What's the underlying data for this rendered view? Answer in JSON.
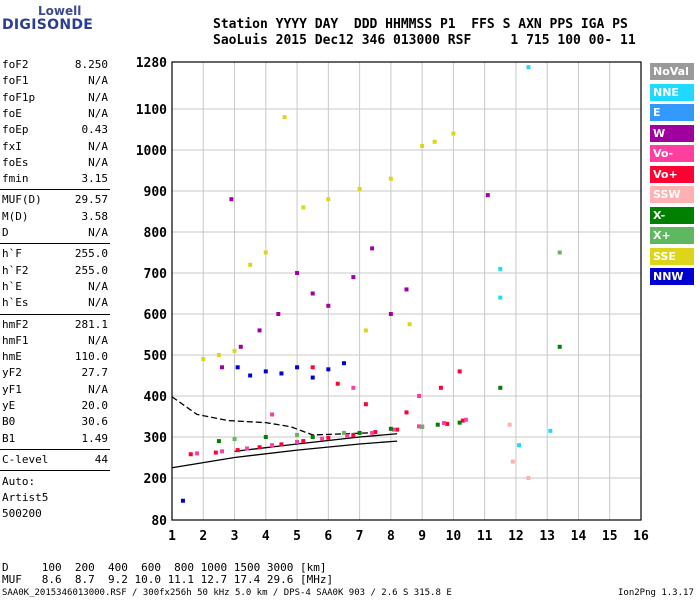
{
  "logo": {
    "line1": "Lowell",
    "line2": "DIGISONDE"
  },
  "header": {
    "row1": "Station YYYY DAY  DDD HHMMSS P1  FFS S AXN PPS IGA PS",
    "row2": "SaoLuis 2015 Dec12 346 013000 RSF     1 715 100 00- 11"
  },
  "params_a": [
    {
      "k": "foF2",
      "v": "8.250"
    },
    {
      "k": "foF1",
      "v": "N/A"
    },
    {
      "k": "foF1p",
      "v": "N/A"
    },
    {
      "k": "foE",
      "v": "N/A"
    },
    {
      "k": "foEp",
      "v": "0.43"
    },
    {
      "k": "fxI",
      "v": "N/A"
    },
    {
      "k": "foEs",
      "v": "N/A"
    },
    {
      "k": "fmin",
      "v": "3.15"
    }
  ],
  "params_b": [
    {
      "k": "MUF(D)",
      "v": "29.57"
    },
    {
      "k": "M(D)",
      "v": "3.58"
    },
    {
      "k": "D",
      "v": "N/A"
    }
  ],
  "params_c": [
    {
      "k": "h`F",
      "v": "255.0"
    },
    {
      "k": "h`F2",
      "v": "255.0"
    },
    {
      "k": "h`E",
      "v": "N/A"
    },
    {
      "k": "h`Es",
      "v": "N/A"
    }
  ],
  "params_d": [
    {
      "k": "hmF2",
      "v": "281.1"
    },
    {
      "k": "hmF1",
      "v": "N/A"
    },
    {
      "k": "hmE",
      "v": "110.0"
    },
    {
      "k": "yF2",
      "v": "27.7"
    },
    {
      "k": "yF1",
      "v": "N/A"
    },
    {
      "k": "yE",
      "v": "20.0"
    },
    {
      "k": "B0",
      "v": "30.6"
    },
    {
      "k": "B1",
      "v": "1.49"
    }
  ],
  "clevel": {
    "k": "C-level",
    "v": "44"
  },
  "auto": [
    "Auto:",
    "Artist5",
    "500200"
  ],
  "legend": [
    {
      "label": "NoVal",
      "color": "#9a9a9a"
    },
    {
      "label": "NNE",
      "color": "#1fd9ff"
    },
    {
      "label": "E",
      "color": "#3399ff"
    },
    {
      "label": "W",
      "color": "#a0009f"
    },
    {
      "label": "Vo-",
      "color": "#ff3fa0"
    },
    {
      "label": "Vo+",
      "color": "#ff0033"
    },
    {
      "label": "SSW",
      "color": "#ffb0b0"
    },
    {
      "label": "X-",
      "color": "#007f00"
    },
    {
      "label": "X+",
      "color": "#5fb75f"
    },
    {
      "label": "SSE",
      "color": "#dcd51a"
    },
    {
      "label": "NNW",
      "color": "#0000d0"
    }
  ],
  "table": {
    "row1": "D     100  200  400  600  800 1000 1500 3000 [km]",
    "row2": "MUF   8.6  8.7  9.2 10.0 11.1 12.7 17.4 29.6 [MHz]"
  },
  "footer": {
    "left": "SAA0K_2015346013000.RSF / 300fx256h 50 kHz 5.0 km / DPS-4 SAA0K 903 / 2.6 S 315.8 E",
    "right": "Ion2Png 1.3.17"
  },
  "chart_data": {
    "type": "scatter",
    "x_ticks": [
      1,
      2,
      3,
      4,
      5,
      6,
      7,
      8,
      9,
      10,
      11,
      12,
      13,
      14,
      15,
      16
    ],
    "y_ticks": [
      80,
      200,
      300,
      400,
      500,
      600,
      700,
      800,
      900,
      1000,
      1100,
      1280
    ],
    "x_range": [
      1,
      16
    ],
    "y_range": [
      80,
      1280
    ],
    "grid": true,
    "series": [
      {
        "name": "Vo+",
        "color": "#ff0033",
        "points": [
          [
            1.6,
            258
          ],
          [
            2.4,
            262
          ],
          [
            3.1,
            268
          ],
          [
            3.8,
            275
          ],
          [
            4.5,
            282
          ],
          [
            5.2,
            290
          ],
          [
            6,
            298
          ],
          [
            6.8,
            305
          ],
          [
            7.5,
            312
          ],
          [
            8.2,
            318
          ],
          [
            9,
            325
          ],
          [
            9.8,
            332
          ],
          [
            10.3,
            340
          ],
          [
            5.5,
            470
          ],
          [
            6.3,
            430
          ],
          [
            7.2,
            380
          ],
          [
            8.5,
            360
          ],
          [
            9.6,
            420
          ],
          [
            10.2,
            460
          ]
        ]
      },
      {
        "name": "Vo-",
        "color": "#ff3fa0",
        "points": [
          [
            1.8,
            260
          ],
          [
            2.6,
            265
          ],
          [
            3.4,
            272
          ],
          [
            4.2,
            280
          ],
          [
            5,
            288
          ],
          [
            5.8,
            296
          ],
          [
            6.6,
            303
          ],
          [
            7.4,
            310
          ],
          [
            8.1,
            318
          ],
          [
            8.9,
            326
          ],
          [
            9.7,
            334
          ],
          [
            10.4,
            342
          ],
          [
            4.2,
            355
          ],
          [
            6.8,
            420
          ],
          [
            8.9,
            400
          ]
        ]
      },
      {
        "name": "NNW",
        "color": "#0000d0",
        "points": [
          [
            3.1,
            470
          ],
          [
            3.5,
            450
          ],
          [
            4,
            460
          ],
          [
            4.5,
            455
          ],
          [
            5,
            470
          ],
          [
            5.5,
            445
          ],
          [
            6,
            465
          ],
          [
            6.5,
            480
          ],
          [
            1.35,
            135
          ]
        ]
      },
      {
        "name": "W",
        "color": "#a0009f",
        "points": [
          [
            2.6,
            470
          ],
          [
            3.2,
            520
          ],
          [
            3.8,
            560
          ],
          [
            4.4,
            600
          ],
          [
            5,
            700
          ],
          [
            5.5,
            650
          ],
          [
            6,
            620
          ],
          [
            6.8,
            690
          ],
          [
            7.4,
            760
          ],
          [
            8,
            600
          ],
          [
            8.5,
            660
          ],
          [
            2.9,
            880
          ],
          [
            11.1,
            890
          ]
        ]
      },
      {
        "name": "SSE",
        "color": "#dcd51a",
        "points": [
          [
            2,
            490
          ],
          [
            2.5,
            500
          ],
          [
            3,
            510
          ],
          [
            3.5,
            720
          ],
          [
            4,
            750
          ],
          [
            4.6,
            1080
          ],
          [
            5.2,
            860
          ],
          [
            6,
            880
          ],
          [
            7,
            905
          ],
          [
            8,
            930
          ],
          [
            9,
            1010
          ],
          [
            9.4,
            1020
          ],
          [
            10,
            1040
          ],
          [
            8.6,
            575
          ],
          [
            7.2,
            560
          ]
        ]
      },
      {
        "name": "X-",
        "color": "#007f00",
        "points": [
          [
            2.5,
            290
          ],
          [
            4,
            300
          ],
          [
            5.5,
            300
          ],
          [
            7,
            310
          ],
          [
            8,
            320
          ],
          [
            9.5,
            330
          ],
          [
            10.2,
            335
          ],
          [
            11.5,
            420
          ],
          [
            13.4,
            520
          ]
        ]
      },
      {
        "name": "X+",
        "color": "#5fb75f",
        "points": [
          [
            3,
            295
          ],
          [
            5,
            305
          ],
          [
            6.5,
            310
          ],
          [
            9,
            325
          ],
          [
            13.4,
            750
          ]
        ]
      },
      {
        "name": "NNE",
        "color": "#1fd9ff",
        "points": [
          [
            11.5,
            710
          ],
          [
            12.1,
            280
          ],
          [
            12.4,
            1260
          ],
          [
            13.1,
            315
          ],
          [
            11.5,
            640
          ]
        ]
      },
      {
        "name": "SSW",
        "color": "#ffb0b0",
        "points": [
          [
            11.8,
            330
          ],
          [
            12.4,
            200
          ],
          [
            11.9,
            240
          ]
        ]
      }
    ],
    "trace_lines": [
      {
        "style": "solid",
        "points": [
          [
            1,
            225
          ],
          [
            3,
            250
          ],
          [
            5,
            268
          ],
          [
            7,
            283
          ],
          [
            8.2,
            290
          ]
        ]
      },
      {
        "style": "solid",
        "points": [
          [
            3,
            265
          ],
          [
            5,
            283
          ],
          [
            7,
            300
          ],
          [
            8.2,
            308
          ]
        ]
      },
      {
        "style": "dashed",
        "points": [
          [
            1,
            398
          ],
          [
            1.8,
            355
          ],
          [
            2.8,
            340
          ],
          [
            4,
            335
          ],
          [
            4.8,
            325
          ],
          [
            5.5,
            305
          ],
          [
            7.3,
            310
          ]
        ]
      }
    ]
  }
}
